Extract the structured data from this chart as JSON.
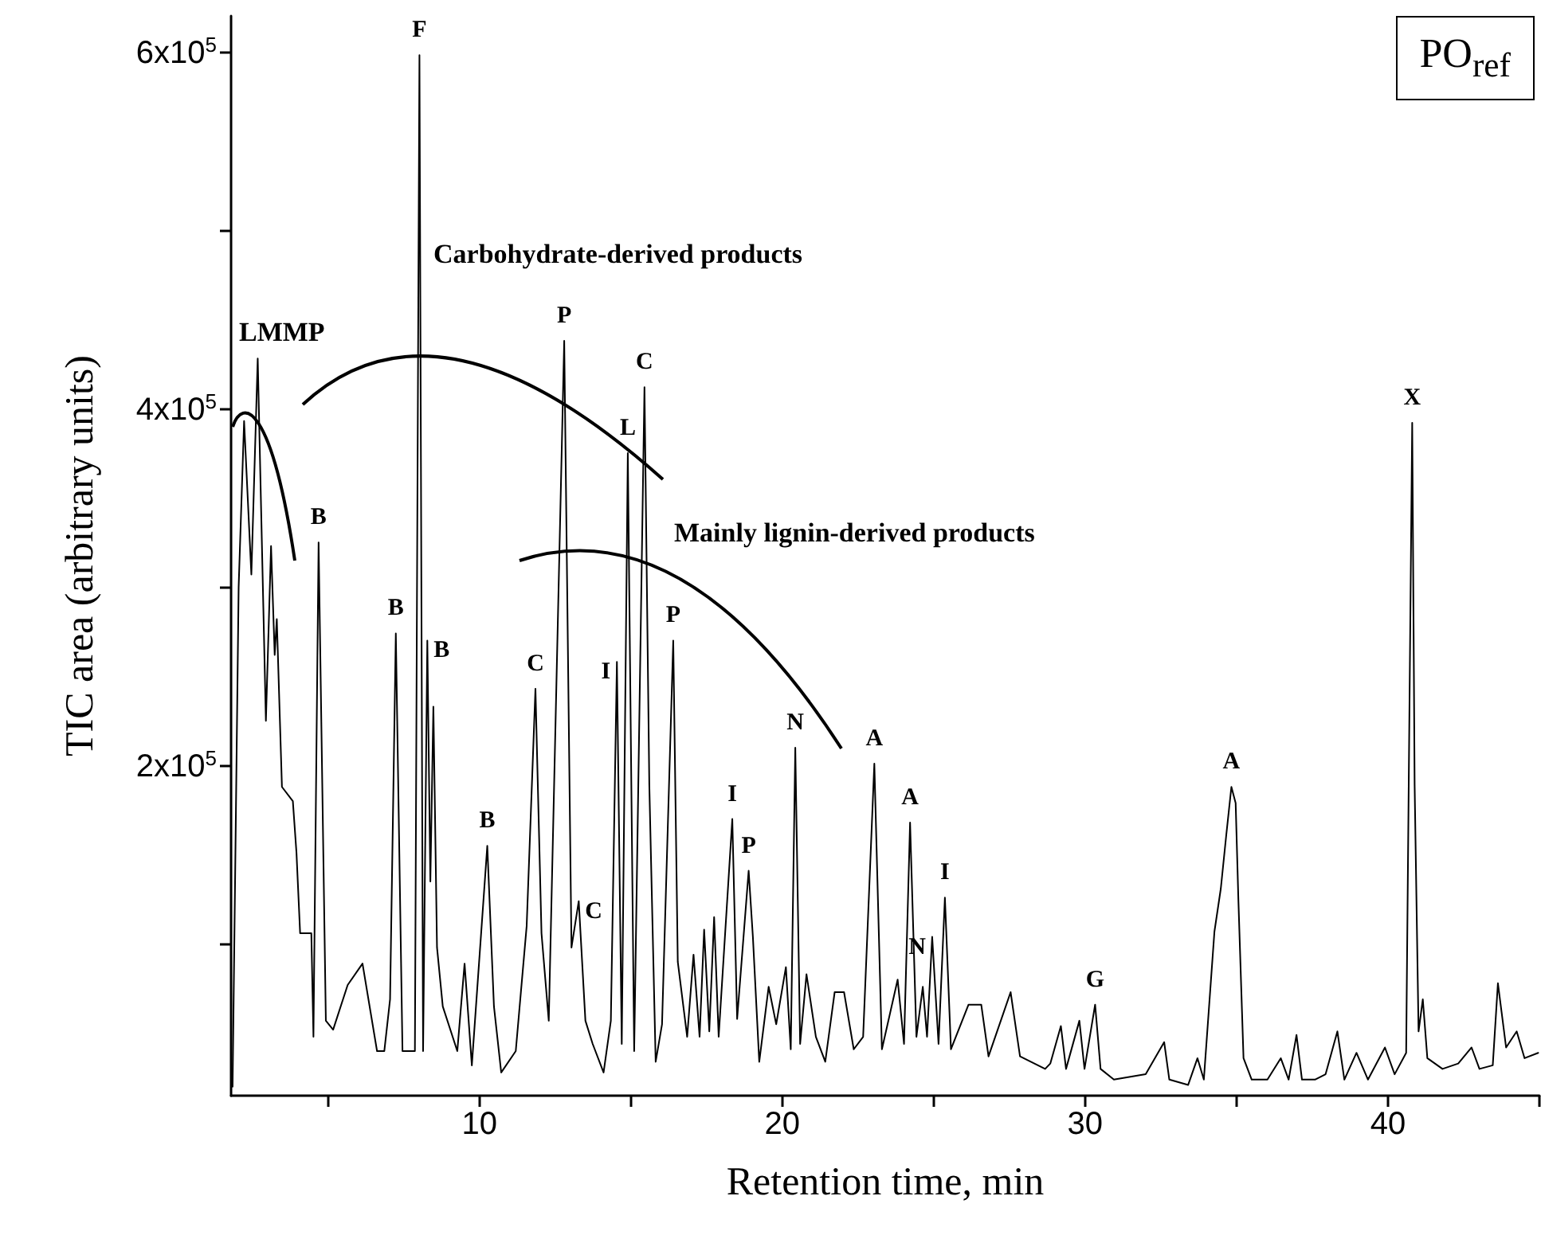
{
  "chart_data": {
    "type": "line",
    "xlabel": "Retention time, min",
    "ylabel": "TIC area (arbitrary units)",
    "xlim": [
      1.8,
      45
    ],
    "ylim": [
      15000,
      620000
    ],
    "xticks": [
      {
        "value": 5,
        "label": null
      },
      10,
      {
        "value": 15,
        "label": null
      },
      20,
      {
        "value": 25,
        "label": null
      },
      30,
      {
        "value": 35,
        "label": null
      },
      40,
      {
        "value": 45,
        "label": null
      }
    ],
    "yticks": [
      {
        "value": 100000,
        "label": null
      },
      {
        "value": 200000,
        "label": "2x10$^{5}$"
      },
      {
        "value": 300000,
        "label": null
      },
      {
        "value": 400000,
        "label": "4x10$^{5}$"
      },
      {
        "value": 500000,
        "label": null
      },
      {
        "value": 600000,
        "label": "6x10$^{5}$"
      }
    ],
    "series": [
      {
        "color": "#000000",
        "x": [
          1.85,
          2.05,
          2.23,
          2.47,
          2.68,
          2.95,
          3.12,
          3.24,
          3.31,
          3.48,
          3.84,
          3.96,
          4.08,
          4.45,
          4.52,
          4.69,
          4.93,
          5.17,
          5.65,
          6.14,
          6.62,
          6.86,
          7.05,
          7.24,
          7.46,
          7.87,
          8.02,
          8.14,
          8.28,
          8.38,
          8.48,
          8.6,
          8.79,
          9.27,
          9.51,
          9.75,
          10.26,
          10.48,
          10.72,
          11.2,
          11.56,
          11.85,
          12.05,
          12.29,
          12.8,
          13.04,
          13.28,
          13.5,
          13.74,
          14.1,
          14.34,
          14.54,
          14.7,
          14.9,
          15.11,
          15.45,
          15.61,
          15.82,
          16.03,
          16.4,
          16.55,
          16.86,
          17.07,
          17.27,
          17.42,
          17.59,
          17.75,
          17.9,
          18.35,
          18.51,
          18.89,
          19.03,
          19.24,
          19.55,
          19.8,
          20.12,
          20.28,
          20.43,
          20.59,
          20.8,
          21.11,
          21.42,
          21.73,
          22.04,
          22.36,
          22.67,
          23.04,
          23.29,
          23.81,
          24.02,
          24.22,
          24.43,
          24.64,
          24.78,
          24.95,
          25.16,
          25.37,
          25.57,
          26.15,
          26.57,
          26.81,
          27.54,
          27.85,
          28.68,
          28.85,
          29.2,
          29.37,
          29.81,
          29.98,
          30.33,
          30.51,
          30.95,
          32.0,
          32.61,
          32.78,
          33.4,
          33.71,
          33.92,
          34.27,
          34.48,
          34.66,
          34.83,
          34.97,
          35.06,
          35.23,
          35.5,
          36.02,
          36.46,
          36.72,
          36.98,
          37.16,
          37.59,
          37.94,
          38.33,
          38.56,
          38.96,
          39.34,
          39.9,
          40.22,
          40.6,
          40.8,
          40.88,
          41.01,
          41.15,
          41.3,
          41.8,
          42.32,
          42.76,
          43.02,
          43.46,
          43.63,
          43.9,
          44.25,
          44.51,
          44.96
        ],
        "values": [
          20000,
          300000,
          393000,
          307000,
          428000,
          225000,
          323000,
          262000,
          282000,
          188000,
          180000,
          151000,
          106000,
          106000,
          48000,
          325000,
          57000,
          52000,
          77000,
          89000,
          40000,
          40000,
          69000,
          274000,
          40000,
          40000,
          598000,
          40000,
          270000,
          135000,
          233000,
          98000,
          65000,
          40000,
          89000,
          32000,
          155000,
          65000,
          28000,
          40000,
          110000,
          243000,
          106000,
          57000,
          438000,
          98000,
          124000,
          57000,
          44000,
          28000,
          57000,
          258000,
          44000,
          375000,
          40000,
          412000,
          189000,
          34000,
          55000,
          270000,
          90000,
          48000,
          94000,
          48000,
          108000,
          51000,
          115000,
          48000,
          170000,
          58000,
          141000,
          104000,
          34000,
          76000,
          55000,
          87000,
          41000,
          210000,
          44000,
          83000,
          48000,
          34000,
          73000,
          73000,
          41000,
          48000,
          201000,
          41000,
          80000,
          44000,
          168000,
          48000,
          76000,
          48000,
          104000,
          44000,
          126000,
          41000,
          66000,
          66000,
          37000,
          73000,
          37000,
          30000,
          33000,
          54000,
          30000,
          57000,
          30000,
          66000,
          30000,
          24000,
          27000,
          45000,
          24000,
          21000,
          36000,
          24000,
          107000,
          131000,
          161000,
          188000,
          179000,
          125000,
          36000,
          24000,
          24000,
          36000,
          24000,
          49000,
          24000,
          24000,
          27000,
          51000,
          24000,
          39000,
          24000,
          42000,
          27000,
          39000,
          392000,
          189000,
          51000,
          69000,
          36000,
          30000,
          33000,
          42000,
          30000,
          32000,
          78000,
          42000,
          51000,
          36000,
          39000
        ]
      }
    ],
    "annotations": [
      {
        "text": "LMMP",
        "x": 2.68,
        "y": 428000
      },
      {
        "text": "B",
        "x": 4.69,
        "y": 325000
      },
      {
        "text": "B",
        "x": 7.24,
        "y": 274000
      },
      {
        "text": "F",
        "x": 8.02,
        "y": 598000
      },
      {
        "text": "B",
        "x": 8.28,
        "y": 270000
      },
      {
        "text": "B",
        "x": 10.26,
        "y": 155000
      },
      {
        "text": "C",
        "x": 11.85,
        "y": 243000
      },
      {
        "text": "P",
        "x": 12.8,
        "y": 438000
      },
      {
        "text": "C",
        "x": 13.28,
        "y": 124000
      },
      {
        "text": "I",
        "x": 14.54,
        "y": 258000
      },
      {
        "text": "L",
        "x": 14.9,
        "y": 375000
      },
      {
        "text": "C",
        "x": 15.45,
        "y": 412000
      },
      {
        "text": "P",
        "x": 16.4,
        "y": 270000
      },
      {
        "text": "I",
        "x": 18.35,
        "y": 170000
      },
      {
        "text": "P",
        "x": 18.89,
        "y": 141000
      },
      {
        "text": "N",
        "x": 20.43,
        "y": 210000
      },
      {
        "text": "A",
        "x": 23.04,
        "y": 201000
      },
      {
        "text": "A",
        "x": 24.22,
        "y": 168000
      },
      {
        "text": "N",
        "x": 24.95,
        "y": 104000
      },
      {
        "text": "I",
        "x": 25.37,
        "y": 126000
      },
      {
        "text": "G",
        "x": 30.33,
        "y": 66000
      },
      {
        "text": "A",
        "x": 34.83,
        "y": 188000
      },
      {
        "text": "X",
        "x": 40.8,
        "y": 392000
      },
      "Carbohydrate-derived products",
      "Mainly lignin-derived products",
      "PO$_{ref}$"
    ]
  }
}
